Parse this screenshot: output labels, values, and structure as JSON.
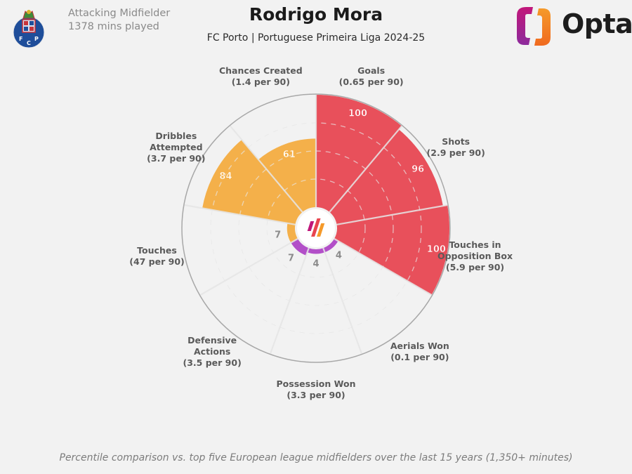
{
  "header": {
    "player_name": "Rodrigo Mora",
    "subtitle": "FC Porto | Portuguese Primeira Liga 2024-25",
    "position": "Attacking Midfielder",
    "minutes": "1378 mins played",
    "club_crest_letters": "F C P",
    "brand_logo_text": "Opta"
  },
  "footnote": "Percentile comparison vs. top five European league midfielders over the last 15 years (1,350+ minutes)",
  "colors": {
    "attacking": "#e8505b",
    "possession": "#f4b04a",
    "defending": "#b24fc8",
    "empty": "#f2f2f2",
    "grid": "#dcdcdc",
    "outline": "#a8a8a8"
  },
  "chart_data": {
    "type": "polar-bar",
    "title": "Rodrigo Mora",
    "subtitle": "FC Porto | Portuguese Primeira Liga 2024-25",
    "rlim": [
      0,
      100
    ],
    "grid": true,
    "categories": [
      {
        "name": "Goals",
        "per90": "(0.65 per 90)",
        "value": 100,
        "group": "attacking"
      },
      {
        "name": "Shots",
        "per90": "(2.9 per 90)",
        "value": 96,
        "group": "attacking"
      },
      {
        "name": "Touches in Opposition Box",
        "name_lines": [
          "Touches in",
          "Opposition Box"
        ],
        "per90": "(5.9 per 90)",
        "value": 100,
        "group": "attacking"
      },
      {
        "name": "Aerials Won",
        "per90": "(0.1 per 90)",
        "value": 4,
        "group": "defending"
      },
      {
        "name": "Possession Won",
        "per90": "(3.3 per 90)",
        "value": 4,
        "group": "defending"
      },
      {
        "name": "Defensive Actions",
        "name_lines": [
          "Defensive",
          "Actions"
        ],
        "per90": "(3.5 per 90)",
        "value": 7,
        "group": "defending"
      },
      {
        "name": "Touches",
        "per90": "(47 per 90)",
        "value": 7,
        "group": "possession"
      },
      {
        "name": "Dribbles Attempted",
        "name_lines": [
          "Dribbles",
          "Attempted"
        ],
        "per90": "(3.7 per 90)",
        "value": 84,
        "group": "possession"
      },
      {
        "name": "Chances Created",
        "per90": "(1.4 per 90)",
        "value": 61,
        "group": "possession"
      }
    ]
  }
}
